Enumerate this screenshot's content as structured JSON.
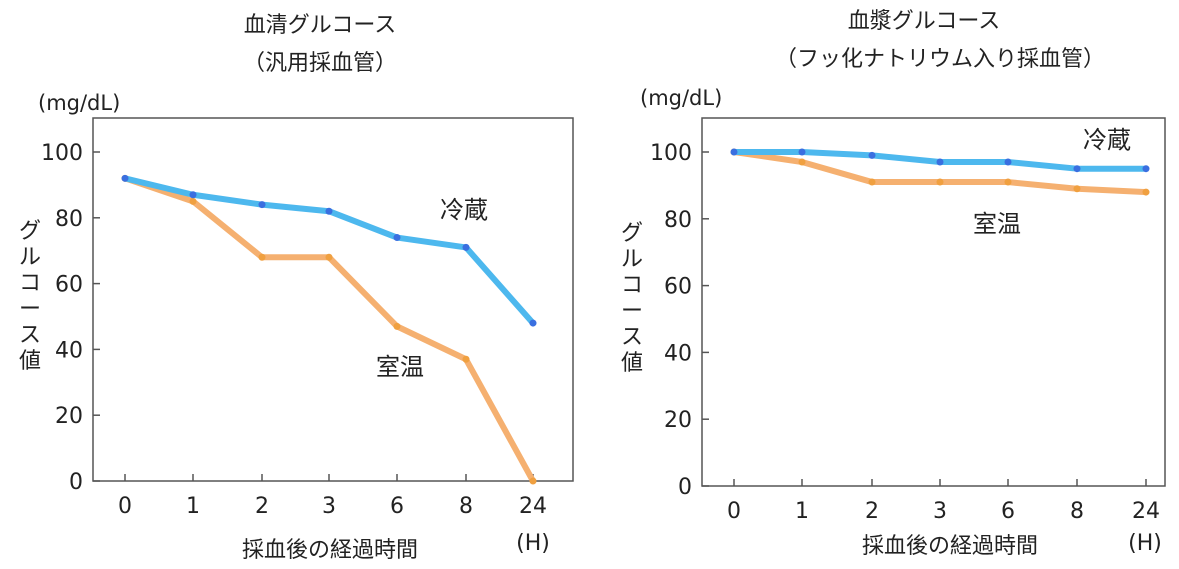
{
  "chart_data": [
    {
      "type": "line",
      "title": "血清グルコース",
      "subtitle": "（汎用採血管）",
      "unit": "(mg/dL)",
      "ylabel": "グルコース値",
      "xlabel": "採血後の経過時間",
      "x_unit": "(H)",
      "categories": [
        "0",
        "1",
        "2",
        "3",
        "6",
        "8",
        "24"
      ],
      "yticks": [
        "0",
        "20",
        "40",
        "60",
        "80",
        "100"
      ],
      "ylim": [
        0,
        100
      ],
      "grid": false,
      "series": [
        {
          "name": "冷蔵",
          "color": "#4db8ee",
          "values": [
            92,
            87,
            84,
            82,
            74,
            71,
            48
          ]
        },
        {
          "name": "室温",
          "color": "#f5b070",
          "values": [
            92,
            85,
            68,
            68,
            47,
            37,
            0
          ]
        }
      ]
    },
    {
      "type": "line",
      "title": "血漿グルコース",
      "subtitle": "（フッ化ナトリウム入り採血管）",
      "unit": "(mg/dL)",
      "ylabel": "グルコース値",
      "xlabel": "採血後の経過時間",
      "x_unit": "(H)",
      "categories": [
        "0",
        "1",
        "2",
        "3",
        "6",
        "8",
        "24"
      ],
      "yticks": [
        "0",
        "20",
        "40",
        "60",
        "80",
        "100"
      ],
      "ylim": [
        0,
        100
      ],
      "grid": false,
      "series": [
        {
          "name": "冷蔵",
          "color": "#4db8ee",
          "values": [
            100,
            100,
            99,
            97,
            97,
            95,
            95
          ]
        },
        {
          "name": "室温",
          "color": "#f5b070",
          "values": [
            100,
            97,
            91,
            91,
            91,
            89,
            88
          ]
        }
      ]
    }
  ]
}
